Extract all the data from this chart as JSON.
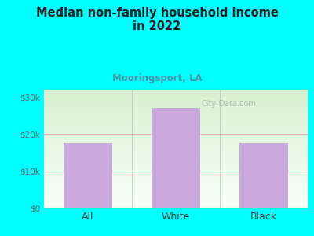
{
  "categories": [
    "All",
    "White",
    "Black"
  ],
  "values": [
    17500,
    27000,
    17500
  ],
  "bar_color": "#C9A8DC",
  "title": "Median non-family household income\nin 2022",
  "subtitle": "Mooringsport, LA",
  "title_color": "#222222",
  "subtitle_color": "#4499AA",
  "background_color": "#00FFFF",
  "plot_bg_left": "#D8F0D0",
  "plot_bg_right": "#F8FFF8",
  "yticks": [
    0,
    10000,
    20000,
    30000
  ],
  "ytick_labels": [
    "$0",
    "$10k",
    "$20k",
    "$30k"
  ],
  "ylim": [
    0,
    32000
  ],
  "grid_color": "#F0B0B0",
  "grid_linewidth": 0.7,
  "watermark": "City-Data.com",
  "tick_color": "#666666",
  "xlabel_color": "#444444",
  "bar_width": 0.55,
  "separator_color": "#BBBBBB"
}
